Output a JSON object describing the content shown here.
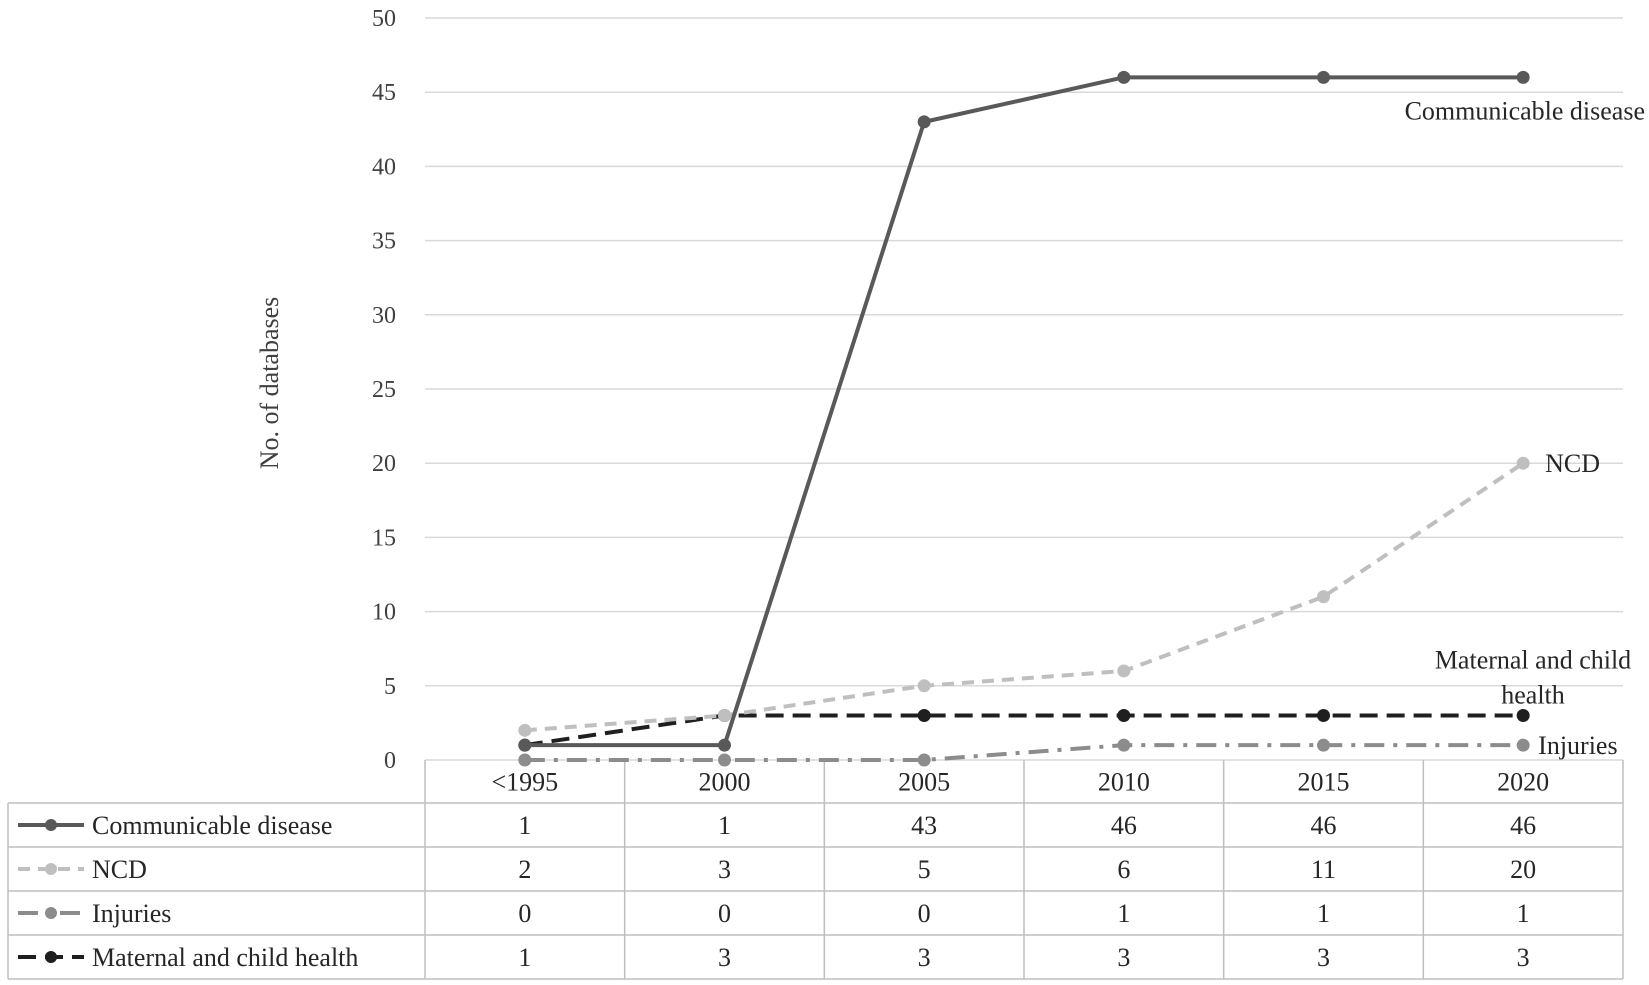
{
  "chart_data": {
    "type": "line",
    "title": "",
    "xlabel": "",
    "ylabel": "No. of databases",
    "ylim": [
      0,
      50
    ],
    "yticks": [
      0,
      5,
      10,
      15,
      20,
      25,
      30,
      35,
      40,
      45,
      50
    ],
    "grid": true,
    "legend": "data-table-bottom",
    "categories": [
      "<1995",
      "2000",
      "2005",
      "2010",
      "2015",
      "2020"
    ],
    "series": [
      {
        "name": "Communicable disease",
        "end_label": "Communicable disease",
        "values": [
          1,
          1,
          43,
          46,
          46,
          46
        ],
        "color": "#595959",
        "style": "solid"
      },
      {
        "name": "NCD",
        "end_label": "NCD",
        "values": [
          2,
          3,
          5,
          6,
          11,
          20
        ],
        "color": "#bfbfbf",
        "style": "dash"
      },
      {
        "name": "Injuries",
        "end_label": "Injuries",
        "values": [
          0,
          0,
          0,
          1,
          1,
          1
        ],
        "color": "#8c8c8c",
        "style": "dashdot"
      },
      {
        "name": "Maternal and child health",
        "end_label": "Maternal and child health",
        "values": [
          1,
          3,
          3,
          3,
          3,
          3
        ],
        "color": "#1f1f1f",
        "style": "longdash"
      }
    ]
  }
}
